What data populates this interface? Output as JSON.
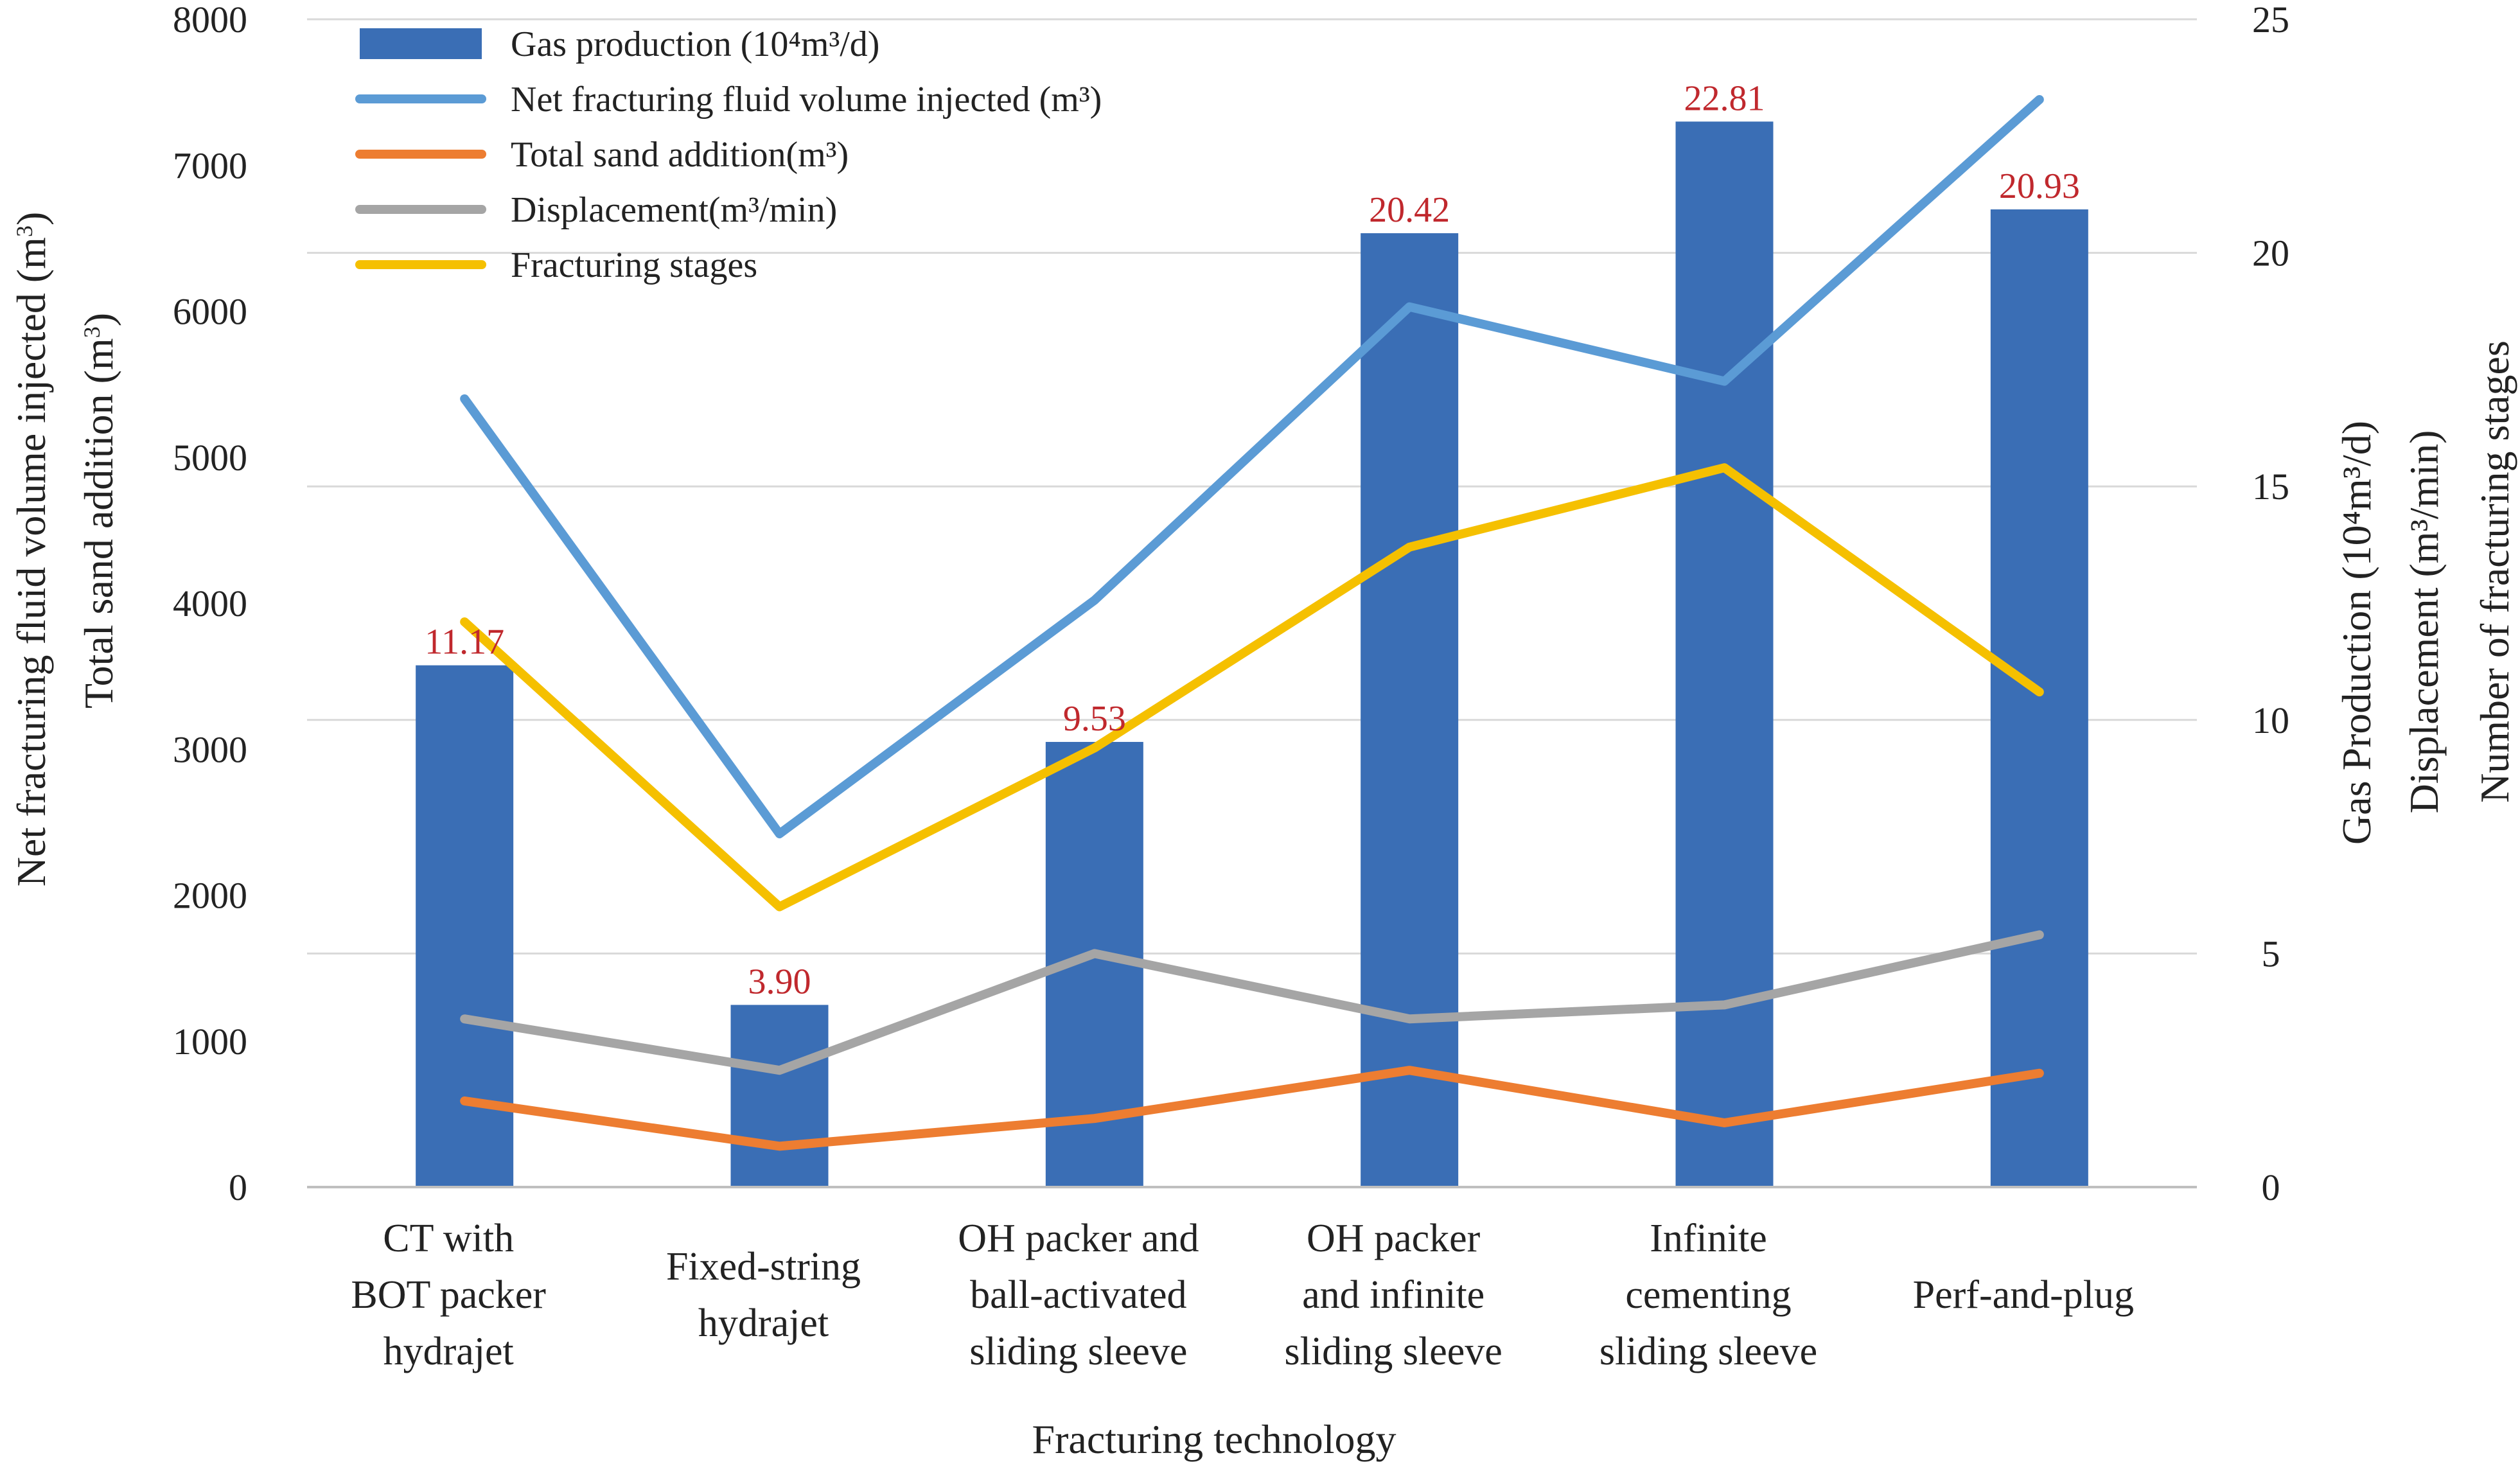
{
  "chart_data": {
    "type": "bar+line",
    "xlabel": "Fracturing technology",
    "ylabel_left": [
      "Net fracturing fluid volume injected (m3)",
      "Total sand addition (m3)"
    ],
    "ylabel_right": [
      "Gas Production (10⁴m³/d)",
      "Displacement (m³/min)",
      "Number of fracturing stages"
    ],
    "ylim_left": [
      0,
      8000
    ],
    "ylim_right": [
      0,
      25
    ],
    "left_ticks": [
      "0",
      "1000",
      "2000",
      "3000",
      "4000",
      "5000",
      "6000",
      "7000",
      "8000"
    ],
    "right_ticks": [
      "0",
      "5",
      "10",
      "15",
      "20",
      "25"
    ],
    "categories": [
      [
        "CT with",
        "BOT packer",
        "hydrajet"
      ],
      [
        "Fixed-string",
        "hydrajet"
      ],
      [
        "OH packer and",
        "ball-activated",
        "sliding sleeve"
      ],
      [
        "OH packer",
        "and infinite",
        "sliding sleeve"
      ],
      [
        "Infinite",
        "cementing",
        "sliding sleeve"
      ],
      [
        "Perf-and-plug"
      ]
    ],
    "bars": {
      "name": "Gas production (10⁴m³/d)",
      "axis": "right",
      "values": [
        11.17,
        3.9,
        9.53,
        20.42,
        22.81,
        20.93
      ],
      "labels": [
        "11.17",
        "3.90",
        "9.53",
        "20.42",
        "22.81",
        "20.93"
      ],
      "color": "#3A6EB5",
      "label_color": "#C0282D"
    },
    "series": [
      {
        "name": "Net fracturing fluid volume injected (m³)",
        "axis": "left",
        "values": [
          5400,
          2420,
          4020,
          6030,
          5520,
          7450
        ],
        "color": "#5B9BD5"
      },
      {
        "name": "Total sand addition(m³)",
        "axis": "left",
        "values": [
          590,
          280,
          470,
          800,
          440,
          780
        ],
        "color": "#ED7D31"
      },
      {
        "name": "Displacement(m³/min)",
        "axis": "right",
        "values": [
          3.6,
          2.5,
          5.0,
          3.6,
          3.9,
          5.4
        ],
        "color": "#A5A5A5"
      },
      {
        "name": "Fracturing stages",
        "axis": "right",
        "values": [
          12.1,
          6.0,
          9.4,
          13.7,
          15.4,
          10.6
        ],
        "color": "#F5C000"
      }
    ],
    "grid": true,
    "legend_position": "top-left"
  }
}
